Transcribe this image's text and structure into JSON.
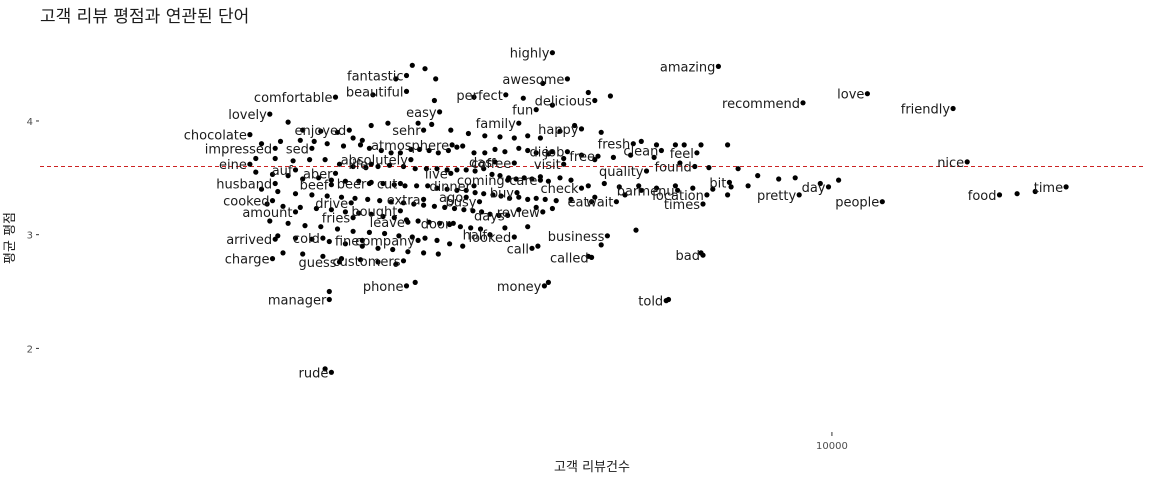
{
  "chart_data": {
    "type": "scatter",
    "title": "고객 리뷰 평점과 연관된 단어",
    "xlabel": "고객 리뷰건수",
    "ylabel": "평균 평점",
    "xscale": "log",
    "xlim": [
      300,
      40000
    ],
    "ylim": [
      1.3,
      4.8
    ],
    "x_ticks": [
      10000
    ],
    "x_tick_labels": [
      "10000"
    ],
    "y_ticks": [
      2,
      3,
      4
    ],
    "y_tick_labels": [
      "2",
      "3",
      "4"
    ],
    "reference_line": {
      "y": 3.6,
      "style": "dashed",
      "color": "#cc2222"
    },
    "grid": false,
    "legend": "none",
    "labeled_points": [
      {
        "word": "highly",
        "x": 2900,
        "y": 4.6
      },
      {
        "word": "amazing",
        "x": 6050,
        "y": 4.48
      },
      {
        "word": "fantastic",
        "x": 1520,
        "y": 4.4
      },
      {
        "word": "awesome",
        "x": 3100,
        "y": 4.37
      },
      {
        "word": "beautiful",
        "x": 1520,
        "y": 4.26
      },
      {
        "word": "comfortable",
        "x": 1110,
        "y": 4.21
      },
      {
        "word": "perfect",
        "x": 2360,
        "y": 4.23
      },
      {
        "word": "delicious",
        "x": 3500,
        "y": 4.18
      },
      {
        "word": "recommend",
        "x": 8800,
        "y": 4.16
      },
      {
        "word": "love",
        "x": 11700,
        "y": 4.24
      },
      {
        "word": "friendly",
        "x": 17100,
        "y": 4.11
      },
      {
        "word": "fun",
        "x": 2700,
        "y": 4.1
      },
      {
        "word": "lovely",
        "x": 830,
        "y": 4.06
      },
      {
        "word": "easy",
        "x": 1760,
        "y": 4.08
      },
      {
        "word": "family",
        "x": 2500,
        "y": 3.98
      },
      {
        "word": "enjoyed",
        "x": 1180,
        "y": 3.92
      },
      {
        "word": "sehr",
        "x": 1640,
        "y": 3.92
      },
      {
        "word": "happy",
        "x": 3300,
        "y": 3.93
      },
      {
        "word": "chocolate",
        "x": 760,
        "y": 3.88
      },
      {
        "word": "atmosphere",
        "x": 1860,
        "y": 3.79
      },
      {
        "word": "fresh",
        "x": 4150,
        "y": 3.8
      },
      {
        "word": "impressed",
        "x": 850,
        "y": 3.76
      },
      {
        "word": "sed",
        "x": 1000,
        "y": 3.76
      },
      {
        "word": "clean",
        "x": 4700,
        "y": 3.74
      },
      {
        "word": "die",
        "x": 2900,
        "y": 3.73
      },
      {
        "word": "job",
        "x": 3100,
        "y": 3.73
      },
      {
        "word": "feel",
        "x": 5500,
        "y": 3.72
      },
      {
        "word": "absolutely",
        "x": 1550,
        "y": 3.66
      },
      {
        "word": "das",
        "x": 2250,
        "y": 3.64
      },
      {
        "word": "coffee",
        "x": 2450,
        "y": 3.63
      },
      {
        "word": "free",
        "x": 3550,
        "y": 3.69
      },
      {
        "word": "eine",
        "x": 760,
        "y": 3.62
      },
      {
        "word": "life",
        "x": 1300,
        "y": 3.62
      },
      {
        "word": "visit",
        "x": 3050,
        "y": 3.62
      },
      {
        "word": "nice",
        "x": 18200,
        "y": 3.64
      },
      {
        "word": "auf",
        "x": 930,
        "y": 3.57
      },
      {
        "word": "aber",
        "x": 1110,
        "y": 3.54
      },
      {
        "word": "live",
        "x": 1850,
        "y": 3.54
      },
      {
        "word": "found",
        "x": 5450,
        "y": 3.6
      },
      {
        "word": "quality",
        "x": 4400,
        "y": 3.56
      },
      {
        "word": "coming",
        "x": 2380,
        "y": 3.48
      },
      {
        "word": "care",
        "x": 2750,
        "y": 3.48
      },
      {
        "word": "husband",
        "x": 850,
        "y": 3.45
      },
      {
        "word": "beef",
        "x": 1090,
        "y": 3.44
      },
      {
        "word": "beer",
        "x": 1290,
        "y": 3.45
      },
      {
        "word": "cut",
        "x": 1480,
        "y": 3.45
      },
      {
        "word": "dinner",
        "x": 2050,
        "y": 3.43
      },
      {
        "word": "check",
        "x": 3300,
        "y": 3.41
      },
      {
        "word": "bit",
        "x": 6350,
        "y": 3.46
      },
      {
        "word": "day",
        "x": 9850,
        "y": 3.42
      },
      {
        "word": "time",
        "x": 28200,
        "y": 3.42
      },
      {
        "word": "bar",
        "x": 4300,
        "y": 3.39
      },
      {
        "word": "menu",
        "x": 5050,
        "y": 3.39
      },
      {
        "word": "buy",
        "x": 2480,
        "y": 3.37
      },
      {
        "word": "location",
        "x": 5750,
        "y": 3.35
      },
      {
        "word": "pretty",
        "x": 8650,
        "y": 3.35
      },
      {
        "word": "food",
        "x": 21000,
        "y": 3.35
      },
      {
        "word": "ago",
        "x": 1980,
        "y": 3.33
      },
      {
        "word": "extra",
        "x": 1640,
        "y": 3.31
      },
      {
        "word": "cooked",
        "x": 840,
        "y": 3.3
      },
      {
        "word": "drive",
        "x": 1190,
        "y": 3.28
      },
      {
        "word": "busy",
        "x": 2100,
        "y": 3.29
      },
      {
        "word": "eat",
        "x": 3450,
        "y": 3.29
      },
      {
        "word": "wait",
        "x": 3850,
        "y": 3.29
      },
      {
        "word": "people",
        "x": 12500,
        "y": 3.29
      },
      {
        "word": "times",
        "x": 5650,
        "y": 3.27
      },
      {
        "word": "amount",
        "x": 930,
        "y": 3.2
      },
      {
        "word": "bought",
        "x": 1480,
        "y": 3.21
      },
      {
        "word": "review",
        "x": 2780,
        "y": 3.2
      },
      {
        "word": "days",
        "x": 2380,
        "y": 3.17
      },
      {
        "word": "fries",
        "x": 1200,
        "y": 3.15
      },
      {
        "word": "leave",
        "x": 1530,
        "y": 3.11
      },
      {
        "word": "door",
        "x": 1870,
        "y": 3.1
      },
      {
        "word": "half",
        "x": 2200,
        "y": 3.0
      },
      {
        "word": "looked",
        "x": 2450,
        "y": 2.98
      },
      {
        "word": "business",
        "x": 3700,
        "y": 2.99
      },
      {
        "word": "arrived",
        "x": 850,
        "y": 2.96
      },
      {
        "word": "cold",
        "x": 1050,
        "y": 2.97
      },
      {
        "word": "fine",
        "x": 1250,
        "y": 2.95
      },
      {
        "word": "company",
        "x": 1600,
        "y": 2.95
      },
      {
        "word": "call",
        "x": 2650,
        "y": 2.88
      },
      {
        "word": "bad",
        "x": 5650,
        "y": 2.82
      },
      {
        "word": "charge",
        "x": 840,
        "y": 2.79
      },
      {
        "word": "guess",
        "x": 1130,
        "y": 2.76
      },
      {
        "word": "customers",
        "x": 1500,
        "y": 2.77
      },
      {
        "word": "called",
        "x": 3450,
        "y": 2.8
      },
      {
        "word": "phone",
        "x": 1520,
        "y": 2.55
      },
      {
        "word": "money",
        "x": 2800,
        "y": 2.55
      },
      {
        "word": "told",
        "x": 4800,
        "y": 2.42
      },
      {
        "word": "manager",
        "x": 1080,
        "y": 2.43
      },
      {
        "word": "rude",
        "x": 1090,
        "y": 1.79
      }
    ],
    "unlabeled_points": [
      [
        1560,
        4.49
      ],
      [
        1650,
        4.46
      ],
      [
        1730,
        4.37
      ],
      [
        1450,
        4.37
      ],
      [
        1310,
        4.23
      ],
      [
        1720,
        4.18
      ],
      [
        2050,
        4.21
      ],
      [
        2550,
        4.2
      ],
      [
        3400,
        4.25
      ],
      [
        3750,
        4.22
      ],
      [
        2780,
        4.33
      ],
      [
        2900,
        4.14
      ],
      [
        1300,
        3.96
      ],
      [
        1400,
        3.98
      ],
      [
        1600,
        3.98
      ],
      [
        1700,
        3.97
      ],
      [
        1850,
        3.92
      ],
      [
        2000,
        3.89
      ],
      [
        2150,
        3.87
      ],
      [
        2300,
        3.86
      ],
      [
        2450,
        3.85
      ],
      [
        2600,
        3.87
      ],
      [
        2750,
        3.85
      ],
      [
        3000,
        3.91
      ],
      [
        3200,
        3.96
      ],
      [
        3600,
        3.9
      ],
      [
        4300,
        3.82
      ],
      [
        4600,
        3.79
      ],
      [
        5000,
        3.79
      ],
      [
        5200,
        3.79
      ],
      [
        5600,
        3.79
      ],
      [
        6300,
        3.79
      ],
      [
        900,
        3.99
      ],
      [
        960,
        3.92
      ],
      [
        1040,
        3.91
      ],
      [
        1120,
        3.9
      ],
      [
        1200,
        3.85
      ],
      [
        1250,
        3.83
      ],
      [
        800,
        3.8
      ],
      [
        870,
        3.82
      ],
      [
        950,
        3.83
      ],
      [
        1010,
        3.82
      ],
      [
        1070,
        3.8
      ],
      [
        1150,
        3.78
      ],
      [
        1240,
        3.79
      ],
      [
        1290,
        3.76
      ],
      [
        1360,
        3.74
      ],
      [
        1420,
        3.72
      ],
      [
        1480,
        3.72
      ],
      [
        1550,
        3.75
      ],
      [
        1610,
        3.75
      ],
      [
        1680,
        3.74
      ],
      [
        1750,
        3.72
      ],
      [
        1830,
        3.74
      ],
      [
        1900,
        3.77
      ],
      [
        1950,
        3.78
      ],
      [
        2050,
        3.72
      ],
      [
        2150,
        3.72
      ],
      [
        2250,
        3.75
      ],
      [
        2350,
        3.73
      ],
      [
        2500,
        3.76
      ],
      [
        2600,
        3.74
      ],
      [
        2700,
        3.72
      ],
      [
        2850,
        3.71
      ],
      [
        3050,
        3.67
      ],
      [
        3300,
        3.7
      ],
      [
        3500,
        3.66
      ],
      [
        3800,
        3.68
      ],
      [
        4100,
        3.7
      ],
      [
        4550,
        3.68
      ],
      [
        5100,
        3.63
      ],
      [
        5800,
        3.59
      ],
      [
        6600,
        3.58
      ],
      [
        7200,
        3.52
      ],
      [
        7900,
        3.49
      ],
      [
        8500,
        3.5
      ],
      [
        9500,
        3.45
      ],
      [
        10300,
        3.48
      ],
      [
        780,
        3.67
      ],
      [
        850,
        3.67
      ],
      [
        920,
        3.65
      ],
      [
        990,
        3.66
      ],
      [
        1060,
        3.66
      ],
      [
        1130,
        3.62
      ],
      [
        1200,
        3.6
      ],
      [
        1270,
        3.59
      ],
      [
        1340,
        3.6
      ],
      [
        1410,
        3.61
      ],
      [
        1500,
        3.6
      ],
      [
        1580,
        3.58
      ],
      [
        1660,
        3.58
      ],
      [
        1740,
        3.58
      ],
      [
        1820,
        3.57
      ],
      [
        1900,
        3.57
      ],
      [
        1980,
        3.57
      ],
      [
        2060,
        3.56
      ],
      [
        2140,
        3.58
      ],
      [
        2220,
        3.53
      ],
      [
        2300,
        3.52
      ],
      [
        2390,
        3.5
      ],
      [
        2470,
        3.49
      ],
      [
        2560,
        3.5
      ],
      [
        2650,
        3.49
      ],
      [
        2750,
        3.51
      ],
      [
        2850,
        3.47
      ],
      [
        3000,
        3.5
      ],
      [
        3150,
        3.48
      ],
      [
        3400,
        3.43
      ],
      [
        3650,
        3.45
      ],
      [
        3900,
        3.42
      ],
      [
        4250,
        3.43
      ],
      [
        4600,
        3.41
      ],
      [
        5000,
        3.43
      ],
      [
        5400,
        3.41
      ],
      [
        5900,
        3.4
      ],
      [
        6400,
        3.42
      ],
      [
        6900,
        3.43
      ],
      [
        22700,
        3.36
      ],
      [
        24600,
        3.38
      ],
      [
        780,
        3.55
      ],
      [
        840,
        3.53
      ],
      [
        900,
        3.52
      ],
      [
        960,
        3.49
      ],
      [
        1030,
        3.5
      ],
      [
        1090,
        3.48
      ],
      [
        1160,
        3.47
      ],
      [
        1230,
        3.47
      ],
      [
        1300,
        3.46
      ],
      [
        1370,
        3.45
      ],
      [
        1440,
        3.44
      ],
      [
        1510,
        3.43
      ],
      [
        1590,
        3.43
      ],
      [
        1670,
        3.43
      ],
      [
        1740,
        3.41
      ],
      [
        1820,
        3.4
      ],
      [
        1900,
        3.39
      ],
      [
        1980,
        3.39
      ],
      [
        2060,
        3.37
      ],
      [
        2140,
        3.36
      ],
      [
        2230,
        3.35
      ],
      [
        2310,
        3.34
      ],
      [
        2400,
        3.32
      ],
      [
        2500,
        3.33
      ],
      [
        2600,
        3.31
      ],
      [
        2700,
        3.32
      ],
      [
        2810,
        3.31
      ],
      [
        2950,
        3.3
      ],
      [
        3150,
        3.31
      ],
      [
        3500,
        3.33
      ],
      [
        4000,
        3.35
      ],
      [
        6300,
        3.35
      ],
      [
        800,
        3.4
      ],
      [
        860,
        3.38
      ],
      [
        930,
        3.36
      ],
      [
        1000,
        3.35
      ],
      [
        1070,
        3.34
      ],
      [
        1140,
        3.33
      ],
      [
        1210,
        3.32
      ],
      [
        1280,
        3.31
      ],
      [
        1350,
        3.3
      ],
      [
        1420,
        3.29
      ],
      [
        1500,
        3.28
      ],
      [
        1570,
        3.27
      ],
      [
        1640,
        3.26
      ],
      [
        1720,
        3.25
      ],
      [
        1800,
        3.24
      ],
      [
        1880,
        3.23
      ],
      [
        1960,
        3.22
      ],
      [
        2040,
        3.21
      ],
      [
        2120,
        3.2
      ],
      [
        2200,
        3.18
      ],
      [
        2290,
        3.17
      ],
      [
        2500,
        3.22
      ],
      [
        2700,
        3.24
      ],
      [
        2900,
        3.23
      ],
      [
        820,
        3.27
      ],
      [
        880,
        3.25
      ],
      [
        950,
        3.24
      ],
      [
        1020,
        3.23
      ],
      [
        1090,
        3.22
      ],
      [
        1160,
        3.2
      ],
      [
        1230,
        3.19
      ],
      [
        1300,
        3.18
      ],
      [
        1370,
        3.16
      ],
      [
        1440,
        3.15
      ],
      [
        1520,
        3.13
      ],
      [
        1600,
        3.12
      ],
      [
        1680,
        3.11
      ],
      [
        1760,
        3.1
      ],
      [
        1840,
        3.09
      ],
      [
        1930,
        3.07
      ],
      [
        2020,
        3.06
      ],
      [
        2110,
        3.05
      ],
      [
        2350,
        3.06
      ],
      [
        2600,
        3.07
      ],
      [
        830,
        3.12
      ],
      [
        900,
        3.1
      ],
      [
        970,
        3.08
      ],
      [
        1040,
        3.07
      ],
      [
        1120,
        3.05
      ],
      [
        1200,
        3.03
      ],
      [
        1290,
        3.02
      ],
      [
        1380,
        3.01
      ],
      [
        1470,
        2.99
      ],
      [
        1560,
        2.98
      ],
      [
        1650,
        2.97
      ],
      [
        1740,
        2.95
      ],
      [
        1840,
        2.92
      ],
      [
        1950,
        2.9
      ],
      [
        4200,
        3.04
      ],
      [
        3600,
        2.91
      ],
      [
        2720,
        2.9
      ],
      [
        860,
        2.99
      ],
      [
        930,
        2.97
      ],
      [
        1000,
        2.96
      ],
      [
        1080,
        2.94
      ],
      [
        1160,
        2.92
      ],
      [
        1250,
        2.9
      ],
      [
        1340,
        2.88
      ],
      [
        1430,
        2.87
      ],
      [
        1530,
        2.85
      ],
      [
        1640,
        2.84
      ],
      [
        1750,
        2.83
      ],
      [
        3400,
        2.81
      ],
      [
        5600,
        2.84
      ],
      [
        880,
        2.84
      ],
      [
        960,
        2.83
      ],
      [
        1050,
        2.81
      ],
      [
        1140,
        2.79
      ],
      [
        1240,
        2.78
      ],
      [
        1340,
        2.76
      ],
      [
        1450,
        2.74
      ],
      [
        1080,
        2.5
      ],
      [
        1580,
        2.58
      ],
      [
        2850,
        2.58
      ],
      [
        4850,
        2.43
      ],
      [
        1060,
        1.82
      ]
    ]
  }
}
